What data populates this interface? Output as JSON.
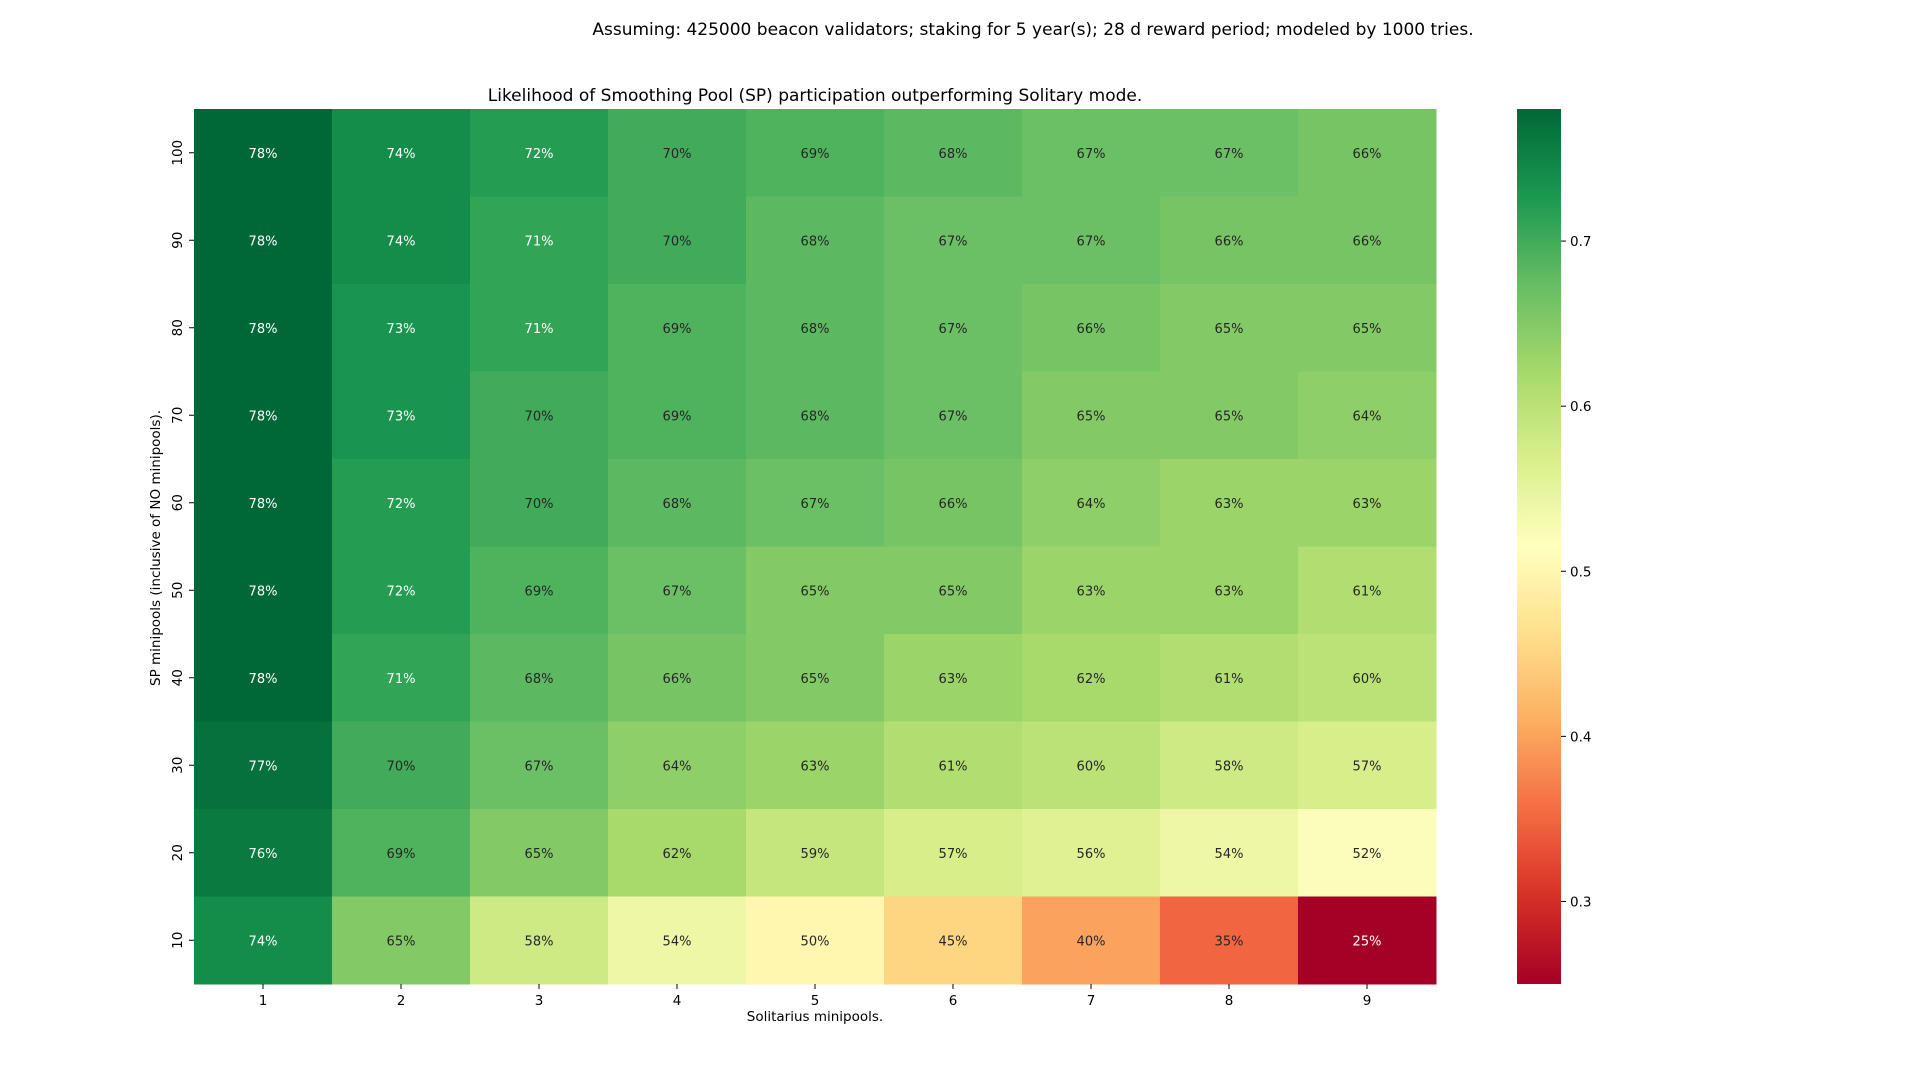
{
  "suptitle": "Assuming: 425000 beacon validators; staking for 5 year(s); 28 d reward period; modeled by 1000 tries.",
  "chart_data": {
    "type": "heatmap",
    "title": "Likelihood of Smoothing Pool (SP) participation outperforming Solitary mode.",
    "xlabel": "Solitarius minipools.",
    "ylabel": "SP minipools (inclusive of NO minipools).",
    "x": [
      "1",
      "2",
      "3",
      "4",
      "5",
      "6",
      "7",
      "8",
      "9"
    ],
    "y": [
      "100",
      "90",
      "80",
      "70",
      "60",
      "50",
      "40",
      "30",
      "20",
      "10"
    ],
    "values": [
      [
        0.78,
        0.74,
        0.72,
        0.7,
        0.69,
        0.68,
        0.67,
        0.67,
        0.66
      ],
      [
        0.78,
        0.74,
        0.71,
        0.7,
        0.68,
        0.67,
        0.67,
        0.66,
        0.66
      ],
      [
        0.78,
        0.73,
        0.71,
        0.69,
        0.68,
        0.67,
        0.66,
        0.65,
        0.65
      ],
      [
        0.78,
        0.73,
        0.7,
        0.69,
        0.68,
        0.67,
        0.65,
        0.65,
        0.64
      ],
      [
        0.78,
        0.72,
        0.7,
        0.68,
        0.67,
        0.66,
        0.64,
        0.63,
        0.63
      ],
      [
        0.78,
        0.72,
        0.69,
        0.67,
        0.65,
        0.65,
        0.63,
        0.63,
        0.61
      ],
      [
        0.78,
        0.71,
        0.68,
        0.66,
        0.65,
        0.63,
        0.62,
        0.61,
        0.6
      ],
      [
        0.77,
        0.7,
        0.67,
        0.64,
        0.63,
        0.61,
        0.6,
        0.58,
        0.57
      ],
      [
        0.76,
        0.69,
        0.65,
        0.62,
        0.59,
        0.57,
        0.56,
        0.54,
        0.52
      ],
      [
        0.74,
        0.65,
        0.58,
        0.54,
        0.5,
        0.45,
        0.4,
        0.35,
        0.25
      ]
    ],
    "cell_labels": [
      [
        "78%",
        "74%",
        "72%",
        "70%",
        "69%",
        "68%",
        "67%",
        "67%",
        "66%"
      ],
      [
        "78%",
        "74%",
        "71%",
        "70%",
        "68%",
        "67%",
        "67%",
        "66%",
        "66%"
      ],
      [
        "78%",
        "73%",
        "71%",
        "69%",
        "68%",
        "67%",
        "66%",
        "65%",
        "65%"
      ],
      [
        "78%",
        "73%",
        "70%",
        "69%",
        "68%",
        "67%",
        "65%",
        "65%",
        "64%"
      ],
      [
        "78%",
        "72%",
        "70%",
        "68%",
        "67%",
        "66%",
        "64%",
        "63%",
        "63%"
      ],
      [
        "78%",
        "72%",
        "69%",
        "67%",
        "65%",
        "65%",
        "63%",
        "63%",
        "61%"
      ],
      [
        "78%",
        "71%",
        "68%",
        "66%",
        "65%",
        "63%",
        "62%",
        "61%",
        "60%"
      ],
      [
        "77%",
        "70%",
        "67%",
        "64%",
        "63%",
        "61%",
        "60%",
        "58%",
        "57%"
      ],
      [
        "76%",
        "69%",
        "65%",
        "62%",
        "59%",
        "57%",
        "56%",
        "54%",
        "52%"
      ],
      [
        "74%",
        "65%",
        "58%",
        "54%",
        "50%",
        "45%",
        "40%",
        "35%",
        "25%"
      ]
    ],
    "colormap": "RdYlGn",
    "vmin": 0.25,
    "vmax": 0.78,
    "colorbar_ticks": [
      "0.3",
      "0.4",
      "0.5",
      "0.6",
      "0.7"
    ],
    "colorbar_tick_values": [
      0.3,
      0.4,
      0.5,
      0.6,
      0.7
    ],
    "legend_position": "right"
  }
}
